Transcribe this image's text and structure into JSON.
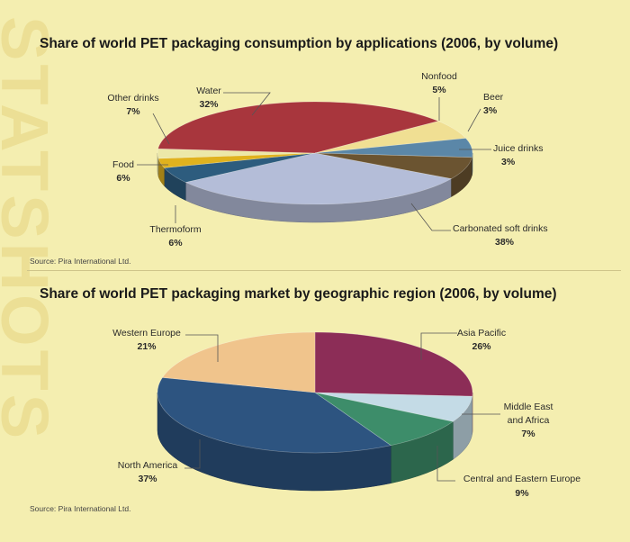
{
  "background_word": "STATSHOTS",
  "colors": {
    "background": "#f4eeb0",
    "watermark": "#ecdf95",
    "leader": "#555555"
  },
  "chart_data": [
    {
      "type": "pie",
      "title": "Share of world PET packaging consumption by applications (2006, by volume)",
      "source": "Source: Pira International Ltd.",
      "slices": [
        {
          "label": "Water",
          "value": 32,
          "value_label": "32%",
          "color": "#b4bdd8"
        },
        {
          "label": "Nonfood",
          "value": 5,
          "value_label": "5%",
          "color": "#2d5c7e"
        },
        {
          "label": "Beer",
          "value": 3,
          "value_label": "3%",
          "color": "#e0b21e"
        },
        {
          "label": "Juice drinks",
          "value": 3,
          "value_label": "3%",
          "color": "#ece8a8"
        },
        {
          "label": "Carbonated soft drinks",
          "value": 38,
          "value_label": "38%",
          "color": "#a8363d"
        },
        {
          "label": "Thermoform",
          "value": 6,
          "value_label": "6%",
          "color": "#f0df93"
        },
        {
          "label": "Food",
          "value": 6,
          "value_label": "6%",
          "color": "#5b87a8"
        },
        {
          "label": "Other drinks",
          "value": 7,
          "value_label": "7%",
          "color": "#6b5431"
        }
      ]
    },
    {
      "type": "pie",
      "title": "Share of world PET packaging market by geographic region (2006, by volume)",
      "source": "Source: Pira International Ltd.",
      "slices": [
        {
          "label": "Asia Pacific",
          "value": 26,
          "value_label": "26%",
          "color": "#8c2d57"
        },
        {
          "label": "Middle East and Africa",
          "value": 7,
          "value_label": "7%",
          "color": "#c4dbe6"
        },
        {
          "label": "Central and Eastern Europe",
          "value": 9,
          "value_label": "9%",
          "color": "#3d8d6a"
        },
        {
          "label": "North America",
          "value": 37,
          "value_label": "37%",
          "color": "#2d5480"
        },
        {
          "label": "Western Europe",
          "value": 21,
          "value_label": "21%",
          "color": "#f0c48c"
        }
      ]
    }
  ]
}
